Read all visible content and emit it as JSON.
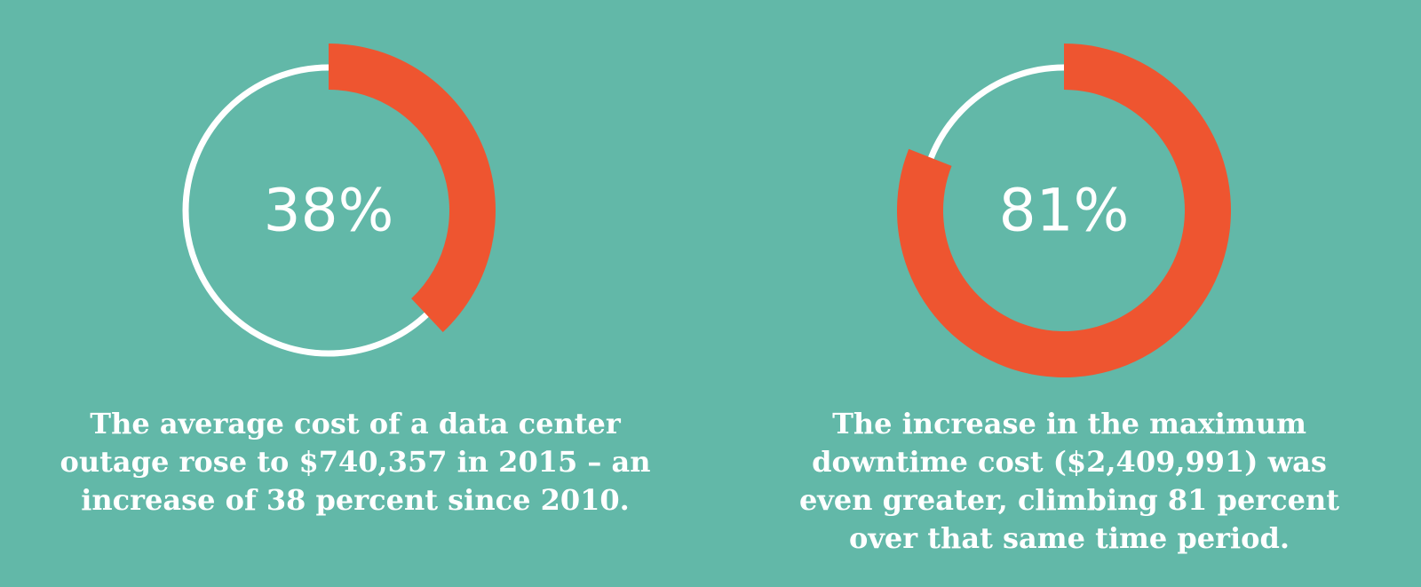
{
  "colors": {
    "background": "#62b8a8",
    "accent": "#ee5530",
    "ring": "#ffffff",
    "text": "#ffffff"
  },
  "chart_data": [
    {
      "type": "donut",
      "value": 38,
      "max": 100,
      "center_label": "38%",
      "caption_lines": [
        "The average cost of a data center",
        "outage rose to $740,357 in 2015 – an",
        "increase of 38 percent since 2010."
      ]
    },
    {
      "type": "donut",
      "value": 81,
      "max": 100,
      "center_label": "81%",
      "caption_lines": [
        "The increase in the maximum",
        "downtime cost ($2,409,991) was",
        "even greater, climbing 81 percent",
        "over that same time period."
      ]
    }
  ]
}
